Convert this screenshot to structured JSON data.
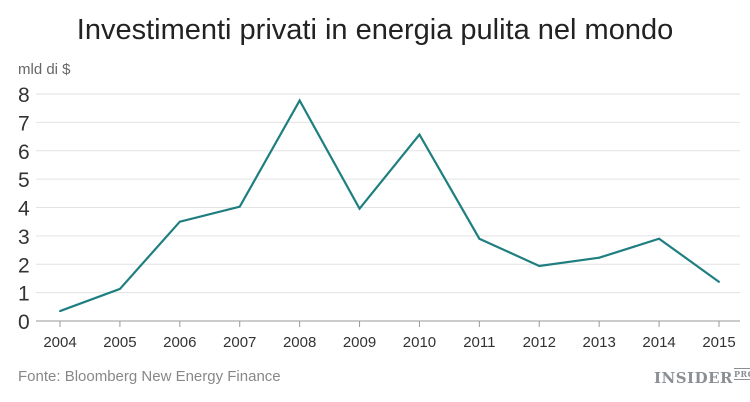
{
  "chart_data": {
    "type": "line",
    "title": "Investimenti privati in energia pulita nel mondo",
    "ylabel": "mld di $",
    "xlabel": "",
    "categories": [
      "2004",
      "2005",
      "2006",
      "2007",
      "2008",
      "2009",
      "2010",
      "2011",
      "2012",
      "2013",
      "2014",
      "2015"
    ],
    "series": [
      {
        "name": "Investimenti",
        "values": [
          0.35,
          1.13,
          3.5,
          4.03,
          7.77,
          3.96,
          6.57,
          2.9,
          1.94,
          2.23,
          2.9,
          1.38
        ]
      }
    ],
    "ylim": [
      0,
      8
    ],
    "yticks": [
      "0",
      "1",
      "2",
      "3",
      "4",
      "5",
      "6",
      "7",
      "8"
    ],
    "grid": true,
    "line_color": "#1f7f80"
  },
  "source": "Fonte: Bloomberg New Energy Finance",
  "logo": {
    "main": "INSIDER",
    "sup": "PRO"
  }
}
